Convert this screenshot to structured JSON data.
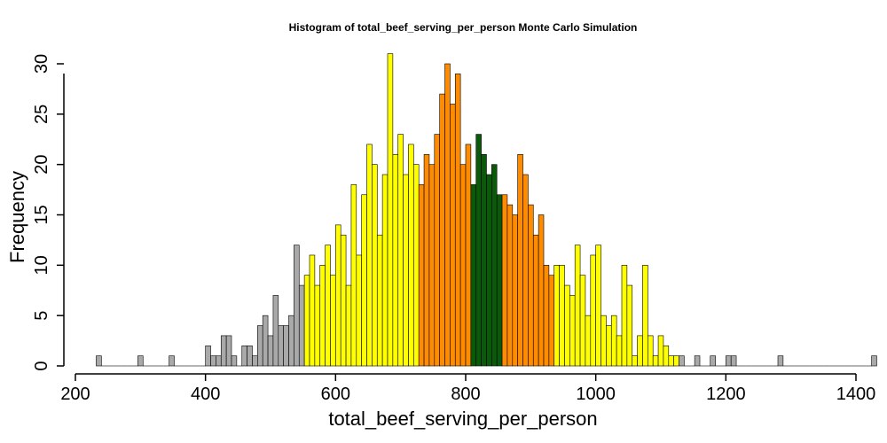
{
  "chart_data": {
    "type": "bar",
    "title": "Histogram of  total_beef_serving_per_person  Monte Carlo Simulation",
    "xlabel": "total_beef_serving_per_person",
    "ylabel": "Frequency",
    "xlim": [
      200,
      1400
    ],
    "ylim": [
      0,
      30
    ],
    "x_ticks": [
      "200",
      "400",
      "600",
      "800",
      "1000",
      "1200",
      "1400"
    ],
    "y_ticks": [
      "0",
      "5",
      "10",
      "15",
      "20",
      "25",
      "30"
    ],
    "grid": false,
    "legend": "none",
    "bin_width": 8,
    "bin_start": 232,
    "colors": {
      "tail": "#a9a9a9",
      "middle": "#ffff00",
      "inner": "#ff8c00",
      "center": "#0b5a0b"
    },
    "color_sequence": [
      "tail",
      "tail",
      "tail",
      "tail",
      "tail",
      "tail",
      "tail",
      "tail",
      "tail",
      "tail",
      "tail",
      "tail",
      "tail",
      "tail",
      "tail",
      "tail",
      "tail",
      "tail",
      "tail",
      "tail",
      "tail",
      "tail",
      "tail",
      "tail",
      "tail",
      "tail",
      "tail",
      "tail",
      "tail",
      "tail",
      "tail",
      "tail",
      "tail",
      "tail",
      "tail",
      "tail",
      "tail",
      "tail",
      "tail",
      "tail",
      "middle",
      "middle",
      "middle",
      "middle",
      "middle",
      "middle",
      "middle",
      "middle",
      "middle",
      "middle",
      "middle",
      "middle",
      "middle",
      "middle",
      "middle",
      "middle",
      "middle",
      "middle",
      "middle",
      "middle",
      "middle",
      "middle",
      "inner",
      "inner",
      "inner",
      "inner",
      "inner",
      "inner",
      "inner",
      "inner",
      "inner",
      "inner",
      "center",
      "center",
      "center",
      "center",
      "center",
      "center",
      "inner",
      "inner",
      "inner",
      "inner",
      "inner",
      "inner",
      "inner",
      "inner",
      "inner",
      "inner",
      "middle",
      "middle",
      "middle",
      "middle",
      "middle",
      "middle",
      "middle",
      "middle",
      "middle",
      "middle",
      "middle",
      "middle",
      "middle",
      "middle",
      "middle",
      "middle",
      "middle",
      "middle",
      "middle",
      "middle",
      "middle",
      "middle",
      "middle",
      "middle",
      "tail",
      "tail",
      "tail",
      "tail",
      "tail",
      "tail",
      "tail",
      "tail",
      "tail",
      "tail",
      "tail",
      "tail",
      "tail",
      "tail",
      "tail",
      "tail",
      "tail",
      "tail",
      "tail",
      "tail",
      "tail",
      "tail",
      "tail",
      "tail",
      "tail",
      "tail",
      "tail",
      "tail",
      "tail"
    ],
    "values": [
      1,
      0,
      0,
      0,
      0,
      0,
      0,
      0,
      1,
      0,
      0,
      0,
      0,
      0,
      1,
      0,
      0,
      0,
      0,
      0,
      0,
      2,
      1,
      1,
      3,
      3,
      1,
      0,
      2,
      2,
      1,
      4,
      5,
      3,
      7,
      4,
      4,
      5,
      12,
      8,
      9,
      11,
      8,
      10,
      12,
      9,
      14,
      13,
      8,
      18,
      11,
      17,
      22,
      20,
      13,
      19,
      31,
      21,
      23,
      19,
      22,
      20,
      18,
      21,
      20,
      23,
      27,
      30,
      26,
      29,
      20,
      22,
      18,
      23,
      21,
      19,
      20,
      17,
      17,
      16,
      15,
      21,
      19,
      16,
      13,
      15,
      10,
      9,
      10,
      10,
      8,
      7,
      12,
      9,
      5,
      11,
      12,
      5,
      4,
      5,
      3,
      10,
      8,
      1,
      3,
      10,
      3,
      1,
      3,
      2,
      1,
      1,
      1,
      0,
      0,
      1,
      0,
      0,
      1,
      0,
      0,
      1,
      1,
      0,
      0,
      0,
      0,
      0,
      0,
      0,
      0,
      1,
      0,
      0,
      0,
      0,
      0,
      0,
      0,
      0,
      0,
      0,
      0,
      0,
      0,
      0,
      0,
      0,
      0,
      1
    ]
  }
}
